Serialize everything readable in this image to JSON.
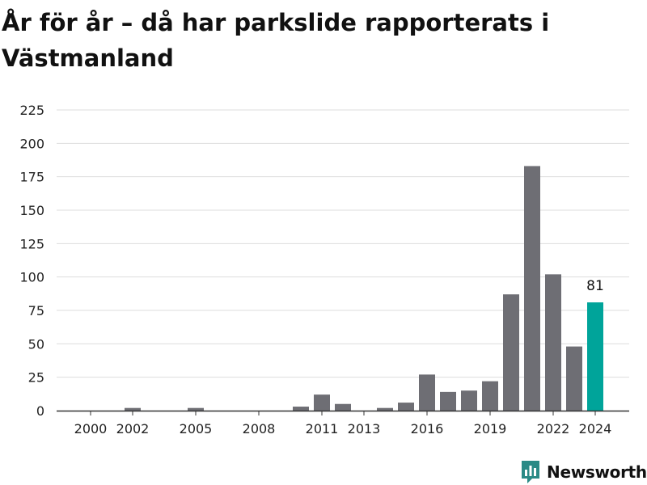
{
  "title": "År för år – då har parkslide rapporterats i Västmanland",
  "brand": {
    "name": "Newsworthy",
    "icon": "newsworthy-logo-icon"
  },
  "colors": {
    "bar": "#6e6e74",
    "highlight": "#00a49a",
    "grid": "#dddddd",
    "axis": "#333333",
    "brand": "#2a8a86"
  },
  "chart_data": {
    "type": "bar",
    "title": "År för år – då har parkslide rapporterats i Västmanland",
    "xlabel": "",
    "ylabel": "",
    "categories": [
      1999,
      2000,
      2001,
      2002,
      2003,
      2004,
      2005,
      2006,
      2007,
      2008,
      2009,
      2010,
      2011,
      2012,
      2013,
      2014,
      2015,
      2016,
      2017,
      2018,
      2019,
      2020,
      2021,
      2022,
      2023,
      2024
    ],
    "values": [
      0,
      0,
      0,
      2,
      0,
      0,
      2,
      0,
      0,
      0,
      0,
      3,
      12,
      5,
      0,
      2,
      6,
      27,
      14,
      15,
      22,
      87,
      183,
      102,
      48,
      81
    ],
    "highlight_category": 2024,
    "data_labels": [
      {
        "category": 2024,
        "text": "81"
      }
    ],
    "x_tick_labels": [
      "2000",
      "2002",
      "2005",
      "2008",
      "2011",
      "2013",
      "2016",
      "2019",
      "2022",
      "2024"
    ],
    "y_ticks": [
      0,
      25,
      50,
      75,
      100,
      125,
      150,
      175,
      200,
      225
    ],
    "ylim": [
      0,
      225
    ],
    "grid": true,
    "legend": "none"
  }
}
